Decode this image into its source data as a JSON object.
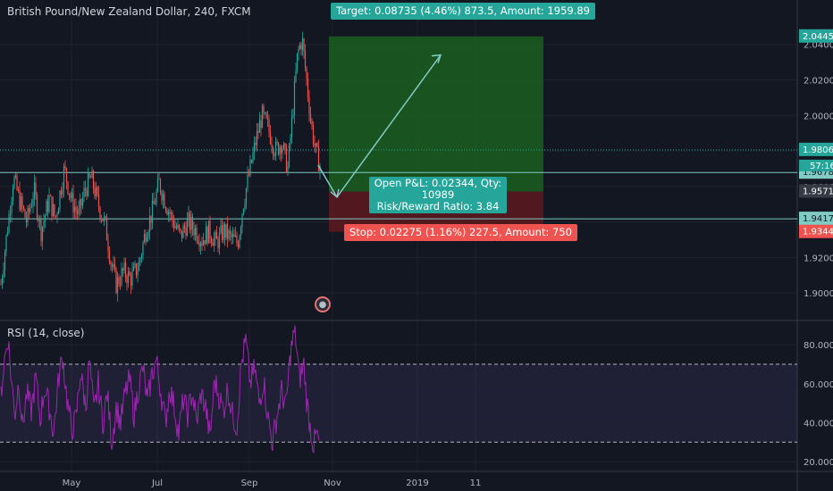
{
  "header": {
    "title": "British Pound/New Zealand Dollar, 240, FXCM"
  },
  "rsi": {
    "title": "RSI (14, close)"
  },
  "position": {
    "target_label": "Target: 0.08735 (4.46%) 873.5, Amount: 1959.89",
    "stop_label": "Stop: 0.02275 (1.16%) 227.5, Amount: 750",
    "pnl_line1": "Open P&L: 0.02344, Qty: 10989",
    "pnl_line2": "Risk/Reward Ratio: 3.84"
  },
  "icons": {
    "event": "globe-icon"
  },
  "colors": {
    "background": "#131722",
    "up": "#26a69a",
    "down": "#ef5350",
    "rsi_line": "#9c27b0",
    "target_zone": "#1b5e20",
    "stop_zone": "#5d1a1f"
  },
  "chart_data": [
    {
      "type": "candlestick",
      "title": "British Pound/New Zealand Dollar, 240, FXCM",
      "x_ticks": [
        "May",
        "Jul",
        "Sep",
        "Nov",
        "2019",
        "11"
      ],
      "y_ticks": [
        "1.90000",
        "1.92000",
        "1.94000",
        "1.96000",
        "1.98000",
        "2.00000",
        "2.02000",
        "2.04000"
      ],
      "ylim": [
        1.885,
        2.065
      ],
      "price_labels": [
        {
          "value": 2.04451,
          "text": "2.04451",
          "kind": "target"
        },
        {
          "value": 1.9806,
          "text": "1.98060",
          "kind": "level"
        },
        {
          "value": 1.96785,
          "text": "1.96785",
          "kind": "level"
        },
        {
          "value": 1.95716,
          "text": "1.95716",
          "kind": "last"
        },
        {
          "value": 1.94177,
          "text": "1.94177",
          "kind": "level"
        },
        {
          "value": 1.93441,
          "text": "1.93441",
          "kind": "stop"
        }
      ],
      "countdown": "57:16",
      "horizontal_levels": [
        1.9806,
        1.96785,
        1.94177
      ],
      "position": {
        "entry": 1.95716,
        "target": 2.04451,
        "stop": 1.93441
      },
      "close_path": [
        [
          1,
          1.905
        ],
        [
          8,
          1.935
        ],
        [
          15,
          1.965
        ],
        [
          22,
          1.952
        ],
        [
          30,
          1.94
        ],
        [
          38,
          1.958
        ],
        [
          46,
          1.935
        ],
        [
          55,
          1.953
        ],
        [
          62,
          1.942
        ],
        [
          72,
          1.97
        ],
        [
          80,
          1.952
        ],
        [
          88,
          1.944
        ],
        [
          95,
          1.958
        ],
        [
          102,
          1.965
        ],
        [
          110,
          1.95
        ],
        [
          118,
          1.938
        ],
        [
          124,
          1.918
        ],
        [
          130,
          1.905
        ],
        [
          138,
          1.912
        ],
        [
          146,
          1.908
        ],
        [
          155,
          1.915
        ],
        [
          163,
          1.935
        ],
        [
          170,
          1.945
        ],
        [
          178,
          1.962
        ],
        [
          186,
          1.95
        ],
        [
          194,
          1.94
        ],
        [
          202,
          1.932
        ],
        [
          210,
          1.94
        ],
        [
          218,
          1.936
        ],
        [
          226,
          1.93
        ],
        [
          234,
          1.935
        ],
        [
          242,
          1.928
        ],
        [
          250,
          1.935
        ],
        [
          258,
          1.931
        ],
        [
          266,
          1.928
        ],
        [
          272,
          1.95
        ],
        [
          278,
          1.965
        ],
        [
          286,
          1.985
        ],
        [
          293,
          2.0
        ],
        [
          300,
          1.993
        ],
        [
          308,
          1.98
        ],
        [
          315,
          1.985
        ],
        [
          322,
          1.97
        ],
        [
          328,
          2.005
        ],
        [
          333,
          2.035
        ],
        [
          338,
          2.043
        ],
        [
          343,
          2.02
        ],
        [
          348,
          1.996
        ],
        [
          353,
          1.98
        ],
        [
          358,
          1.972
        ]
      ]
    },
    {
      "type": "line",
      "title": "RSI (14, close)",
      "y_ticks": [
        "20.0000",
        "40.0000",
        "60.0000",
        "80.0000"
      ],
      "ylim": [
        15,
        92
      ],
      "bands": [
        30,
        70
      ],
      "series": [
        {
          "values": [
            [
              1,
              55
            ],
            [
              5,
              72
            ],
            [
              9,
              84
            ],
            [
              13,
              60
            ],
            [
              17,
              45
            ],
            [
              21,
              62
            ],
            [
              25,
              38
            ],
            [
              30,
              55
            ],
            [
              35,
              46
            ],
            [
              40,
              63
            ],
            [
              45,
              42
            ],
            [
              50,
              58
            ],
            [
              55,
              48
            ],
            [
              60,
              35
            ],
            [
              66,
              64
            ],
            [
              70,
              74
            ],
            [
              75,
              52
            ],
            [
              80,
              36
            ],
            [
              85,
              42
            ],
            [
              90,
              66
            ],
            [
              96,
              48
            ],
            [
              100,
              72
            ],
            [
              105,
              45
            ],
            [
              110,
              60
            ],
            [
              115,
              40
            ],
            [
              120,
              55
            ],
            [
              125,
              30
            ],
            [
              130,
              48
            ],
            [
              135,
              40
            ],
            [
              140,
              55
            ],
            [
              145,
              62
            ],
            [
              150,
              44
            ],
            [
              155,
              58
            ],
            [
              160,
              68
            ],
            [
              165,
              50
            ],
            [
              170,
              65
            ],
            [
              175,
              72
            ],
            [
              180,
              56
            ],
            [
              185,
              40
            ],
            [
              190,
              58
            ],
            [
              195,
              48
            ],
            [
              200,
              34
            ],
            [
              205,
              52
            ],
            [
              210,
              44
            ],
            [
              215,
              56
            ],
            [
              220,
              40
            ],
            [
              225,
              55
            ],
            [
              230,
              48
            ],
            [
              235,
              32
            ],
            [
              240,
              62
            ],
            [
              245,
              54
            ],
            [
              250,
              46
            ],
            [
              255,
              58
            ],
            [
              260,
              44
            ],
            [
              265,
              38
            ],
            [
              270,
              70
            ],
            [
              275,
              82
            ],
            [
              280,
              60
            ],
            [
              285,
              68
            ],
            [
              290,
              50
            ],
            [
              295,
              62
            ],
            [
              300,
              42
            ],
            [
              305,
              30
            ],
            [
              310,
              44
            ],
            [
              315,
              56
            ],
            [
              320,
              48
            ],
            [
              325,
              76
            ],
            [
              330,
              88
            ],
            [
              335,
              62
            ],
            [
              340,
              70
            ],
            [
              343,
              52
            ],
            [
              347,
              38
            ],
            [
              351,
              28
            ],
            [
              354,
              34
            ],
            [
              357,
              30
            ]
          ]
        }
      ]
    }
  ]
}
